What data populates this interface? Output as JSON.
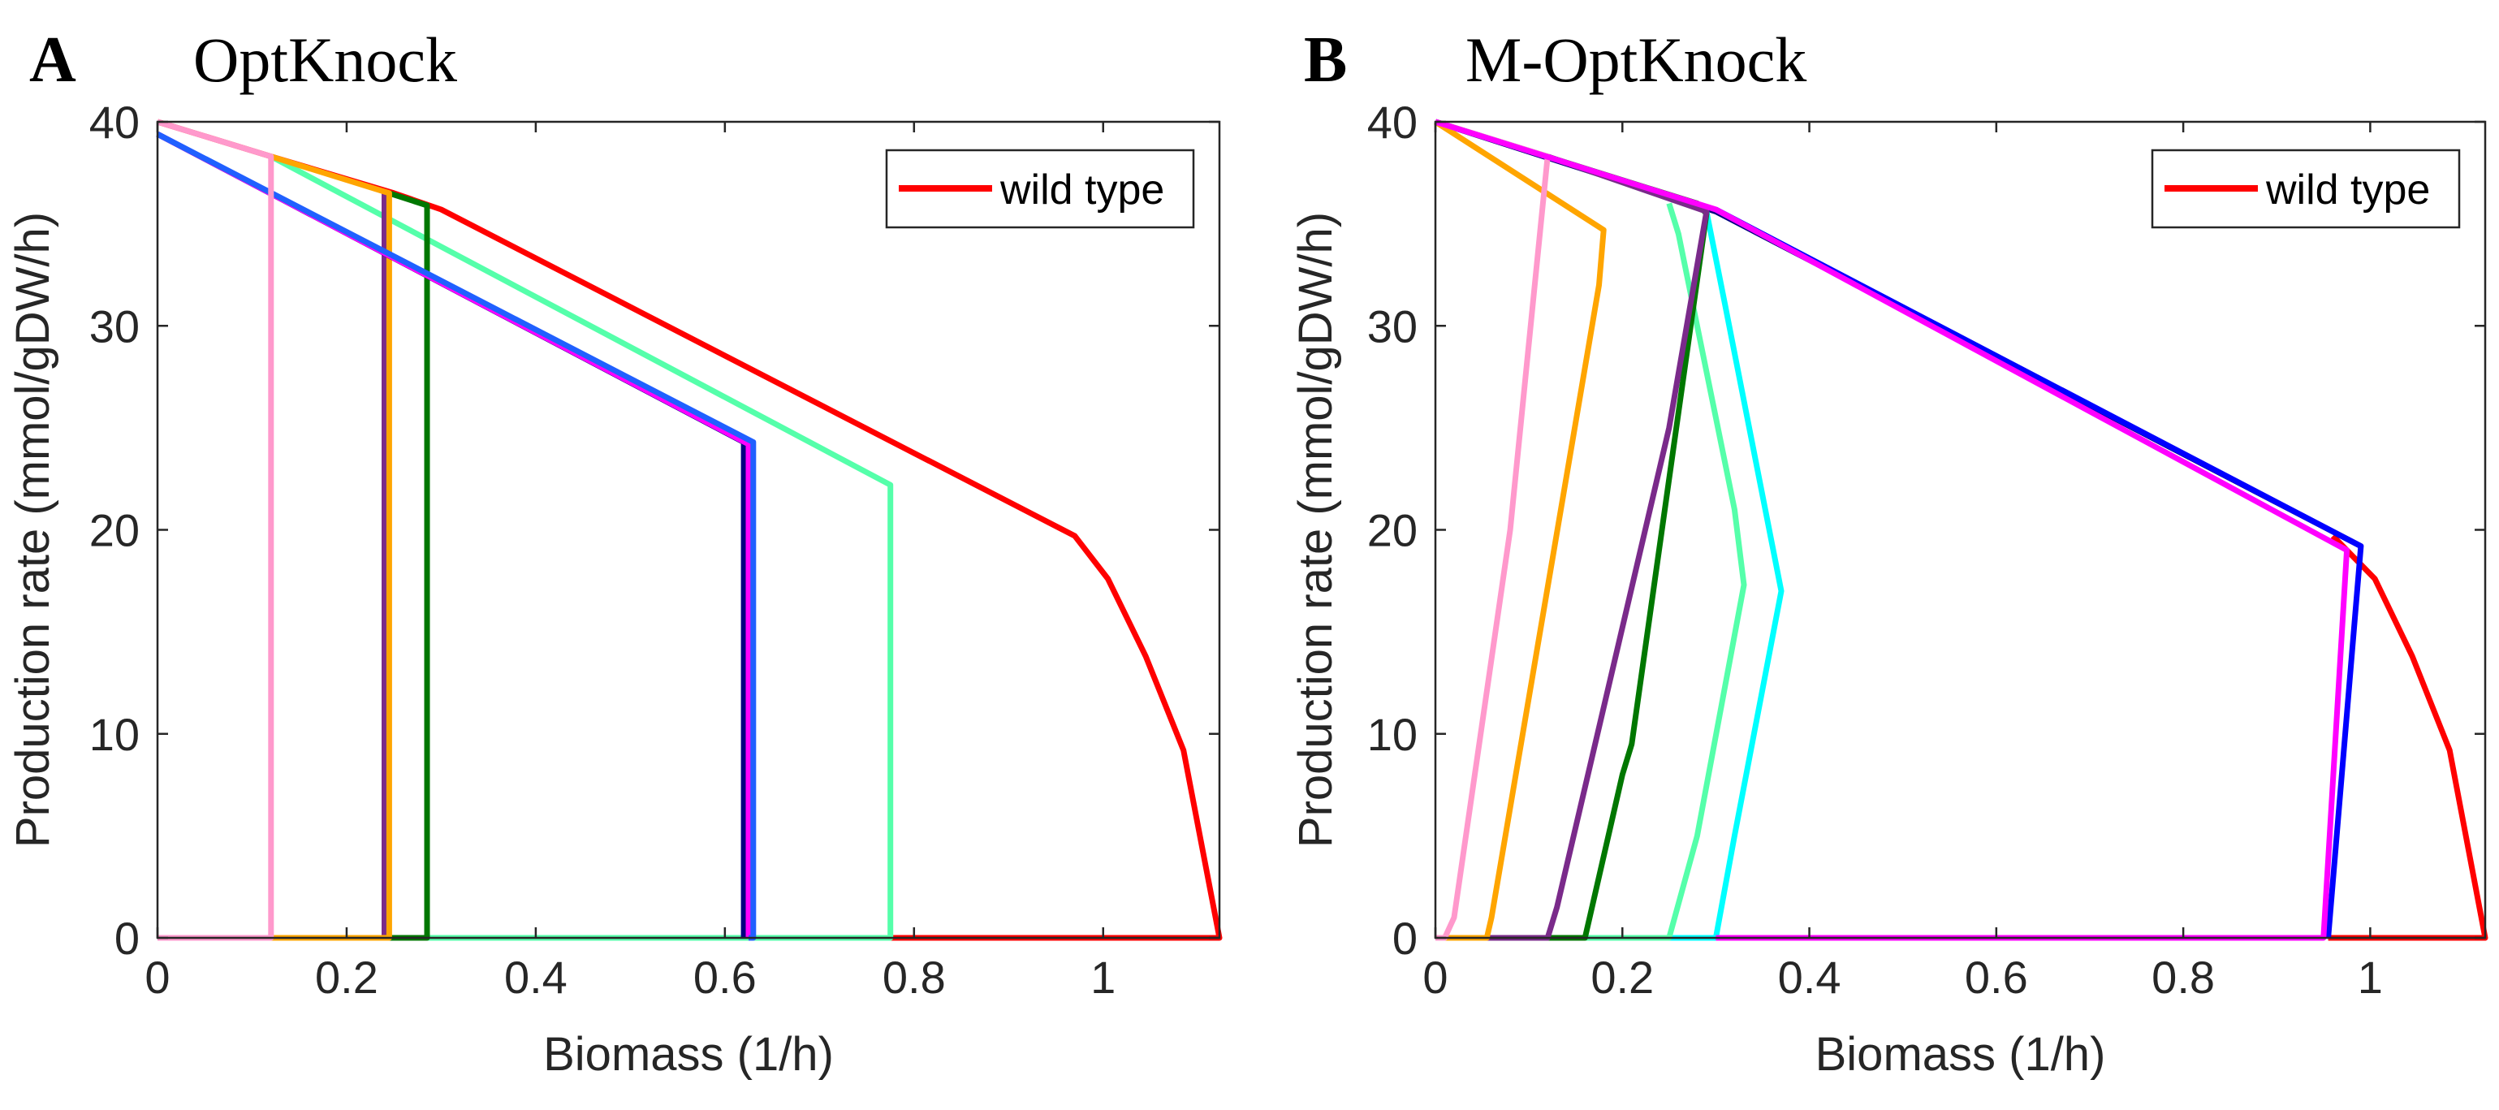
{
  "chart_data": [
    {
      "type": "line",
      "panel_label": "A",
      "title": "OptKnock",
      "xlabel": "Biomass (1/h)",
      "ylabel": "Production rate (mmol/gDW/h)",
      "xlim": [
        0,
        1.123
      ],
      "ylim": [
        0,
        40
      ],
      "xticks": [
        "0",
        "0.2",
        "0.4",
        "0.6",
        "0.8",
        "1"
      ],
      "xtick_values": [
        0,
        0.2,
        0.4,
        0.6,
        0.8,
        1
      ],
      "yticks": [
        "0",
        "10",
        "20",
        "30",
        "40"
      ],
      "ytick_values": [
        0,
        10,
        20,
        30,
        40
      ],
      "legend": {
        "position": "top-right",
        "entries": [
          "wild type"
        ]
      },
      "series": [
        {
          "name": "wild type",
          "color": "#ff0000",
          "x": [
            0,
            0.12,
            0.25,
            0.3,
            0.97,
            1.005,
            1.045,
            1.085,
            1.123,
            0.775
          ],
          "y": [
            40,
            38.3,
            36.5,
            35.7,
            19.7,
            17.6,
            13.8,
            9.2,
            0,
            0
          ]
        },
        {
          "name": "aquamarine",
          "color": "#55ffaa",
          "x": [
            0.12,
            0.775,
            0.775,
            0.285
          ],
          "y": [
            38.3,
            22.2,
            0,
            0
          ]
        },
        {
          "name": "dark green",
          "color": "#007700",
          "x": [
            0.245,
            0.285,
            0.285,
            0.245
          ],
          "y": [
            36.5,
            35.9,
            0,
            0
          ]
        },
        {
          "name": "purple",
          "color": "#7a2a8a",
          "x": [
            0.24,
            0.24
          ],
          "y": [
            36.5,
            0
          ]
        },
        {
          "name": "orange",
          "color": "#ffa500",
          "x": [
            0.12,
            0.245,
            0.245,
            0.12
          ],
          "y": [
            38.3,
            36.5,
            0,
            0
          ]
        },
        {
          "name": "navy",
          "color": "#000080",
          "x": [
            0,
            0.62,
            0.62
          ],
          "y": [
            39.4,
            24.3,
            0
          ]
        },
        {
          "name": "magenta",
          "color": "#ff00ff",
          "x": [
            0,
            0.625,
            0.625
          ],
          "y": [
            39.4,
            24.2,
            0
          ]
        },
        {
          "name": "blue",
          "color": "#2060ff",
          "x": [
            0,
            0.63,
            0.63,
            0.625
          ],
          "y": [
            39.4,
            24.3,
            0,
            0
          ]
        },
        {
          "name": "pink",
          "color": "#ff99cc",
          "x": [
            0,
            0.12,
            0.12,
            0
          ],
          "y": [
            40,
            38.3,
            0,
            0
          ]
        }
      ]
    },
    {
      "type": "line",
      "panel_label": "B",
      "title": "M-OptKnock",
      "xlabel": "Biomass (1/h)",
      "ylabel": "Production rate (mmol/gDW/h)",
      "xlim": [
        0,
        1.123
      ],
      "ylim": [
        0,
        40
      ],
      "xticks": [
        "0",
        "0.2",
        "0.4",
        "0.6",
        "0.8",
        "1"
      ],
      "xtick_values": [
        0,
        0.2,
        0.4,
        0.6,
        0.8,
        1
      ],
      "yticks": [
        "0",
        "10",
        "20",
        "30",
        "40"
      ],
      "ytick_values": [
        0,
        10,
        20,
        30,
        40
      ],
      "legend": {
        "position": "top-right",
        "entries": [
          "wild type"
        ]
      },
      "series": [
        {
          "name": "wild type",
          "color": "#ff0000",
          "x": [
            0.96,
            1.005,
            1.045,
            1.085,
            1.123,
            0.955
          ],
          "y": [
            19.7,
            17.6,
            13.8,
            9.2,
            0,
            0
          ]
        },
        {
          "name": "navy",
          "color": "#000080",
          "x": [
            0,
            0.3,
            0.99
          ],
          "y": [
            40,
            35.6,
            19.2
          ]
        },
        {
          "name": "blue",
          "color": "#0000ff",
          "x": [
            0.3,
            0.99,
            0.955
          ],
          "y": [
            35.7,
            19.2,
            0
          ]
        },
        {
          "name": "cyan",
          "color": "#00ffff",
          "x": [
            0.29,
            0.31,
            0.37,
            0.32,
            0.3,
            0.25
          ],
          "y": [
            35.6,
            31,
            17,
            5,
            0,
            0
          ]
        },
        {
          "name": "aquamarine",
          "color": "#55ffaa",
          "x": [
            0.25,
            0.26,
            0.32,
            0.33,
            0.28,
            0.25,
            0.16
          ],
          "y": [
            36,
            34.5,
            21,
            17.3,
            5,
            0,
            0
          ]
        },
        {
          "name": "dark green",
          "color": "#007700",
          "x": [
            0,
            0.28,
            0.29,
            0.21,
            0.2,
            0.165,
            0.16,
            0.12
          ],
          "y": [
            40,
            36,
            35.5,
            9.5,
            8,
            1,
            0,
            0
          ]
        },
        {
          "name": "purple",
          "color": "#7a2a8a",
          "x": [
            0,
            0.12,
            0.29,
            0.25,
            0.13,
            0.12,
            0.055
          ],
          "y": [
            40,
            38.3,
            35.6,
            25,
            1.5,
            0,
            0
          ]
        },
        {
          "name": "orange",
          "color": "#ffa500",
          "x": [
            0,
            0.18,
            0.175,
            0.06,
            0.055,
            0.01
          ],
          "y": [
            40,
            34.7,
            32,
            1,
            0,
            0
          ]
        },
        {
          "name": "pink",
          "color": "#ff99cc",
          "x": [
            0,
            0.12,
            0.115,
            0.08,
            0.02,
            0.01,
            0
          ],
          "y": [
            40,
            38.3,
            36,
            20,
            1,
            0,
            0
          ]
        },
        {
          "name": "magenta",
          "color": "#ff00ff",
          "x": [
            0,
            0.3,
            0.975,
            0.95,
            0.3
          ],
          "y": [
            40,
            35.7,
            19,
            0,
            0
          ]
        }
      ]
    }
  ]
}
